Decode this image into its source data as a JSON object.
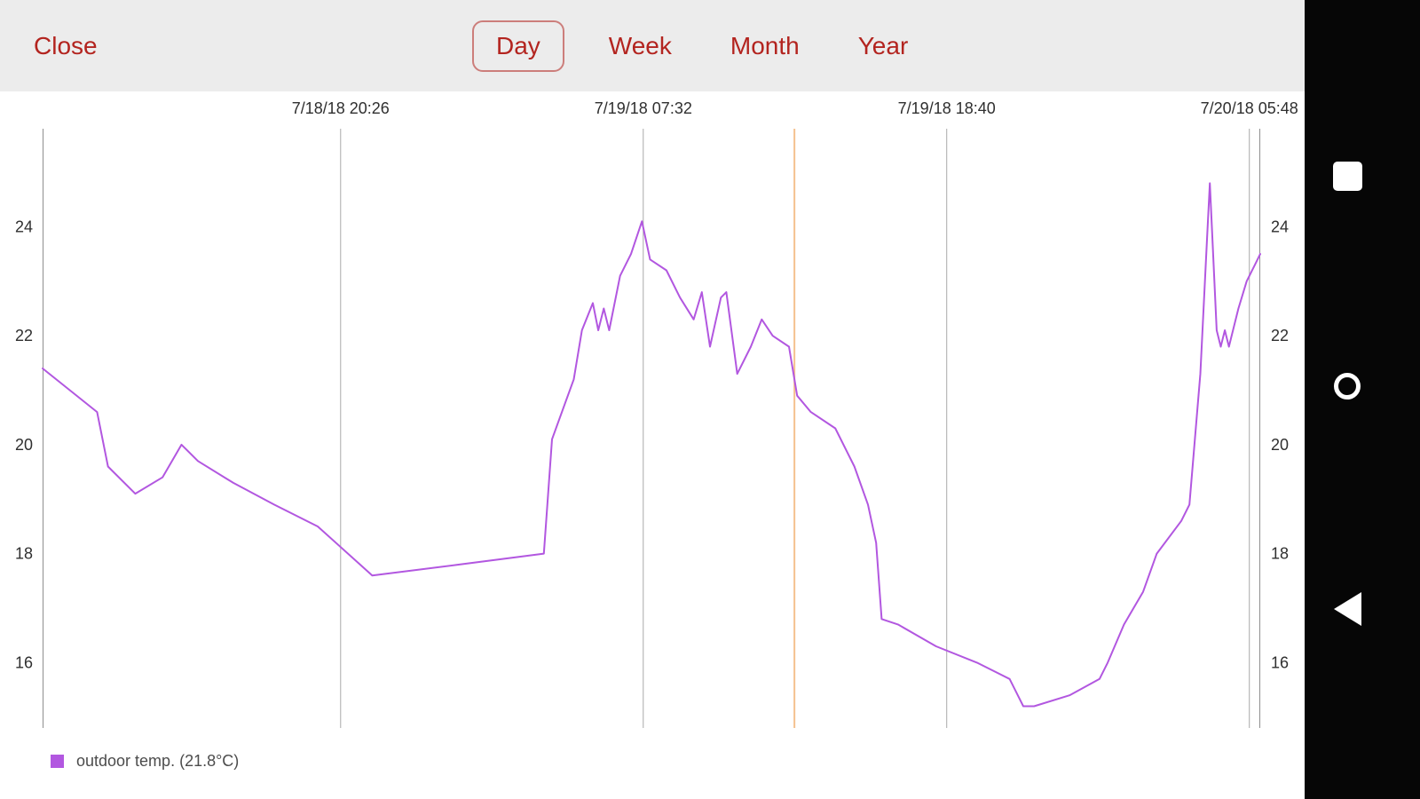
{
  "header": {
    "close_label": "Close",
    "tabs": [
      {
        "label": "Day",
        "selected": true
      },
      {
        "label": "Week",
        "selected": false
      },
      {
        "label": "Month",
        "selected": false
      },
      {
        "label": "Year",
        "selected": false
      }
    ]
  },
  "colors": {
    "accent_red": "#b3241f",
    "series_purple": "#b257e0",
    "now_line_orange": "#f5c18e",
    "grid_gray": "#aaaaaa",
    "axis_border_gray": "#8f8f8f",
    "header_gray": "#ececec",
    "nav_bar_black": "#060606"
  },
  "legend": {
    "label": "outdoor temp. (21.8°C)"
  },
  "android_nav": {
    "icons": [
      "recents-square-icon",
      "home-circle-icon",
      "back-triangle-icon"
    ]
  },
  "chart_data": {
    "type": "line",
    "x_unit": "hours (day view, 7/18/18 – 7/20/18)",
    "x_range": [
      0,
      44.7
    ],
    "y_unit": "°C",
    "y_range": [
      14.8,
      25.8
    ],
    "y_ticks": [
      16,
      18,
      20,
      22,
      24
    ],
    "x_ticks": [
      {
        "pos": 10.94,
        "label": "7/18/18 20:26"
      },
      {
        "pos": 22.05,
        "label": "7/19/18 07:32"
      },
      {
        "pos": 33.19,
        "label": "7/19/18 18:40"
      },
      {
        "pos": 44.3,
        "label": "7/20/18 05:48"
      }
    ],
    "now_line": {
      "pos": 27.6
    },
    "grid": "vertical-only",
    "legend_position": "bottom-left",
    "series": [
      {
        "name": "outdoor temp.",
        "current_value": "21.8°C",
        "points": [
          [
            0.0,
            21.4
          ],
          [
            2.0,
            20.6
          ],
          [
            2.4,
            19.6
          ],
          [
            3.4,
            19.1
          ],
          [
            4.4,
            19.4
          ],
          [
            5.1,
            20.0
          ],
          [
            5.7,
            19.7
          ],
          [
            7.0,
            19.3
          ],
          [
            8.5,
            18.9
          ],
          [
            10.1,
            18.5
          ],
          [
            12.1,
            17.6
          ],
          [
            15.3,
            17.8
          ],
          [
            18.4,
            18.0
          ],
          [
            18.7,
            20.1
          ],
          [
            19.5,
            21.2
          ],
          [
            19.8,
            22.1
          ],
          [
            20.2,
            22.6
          ],
          [
            20.4,
            22.1
          ],
          [
            20.6,
            22.5
          ],
          [
            20.8,
            22.1
          ],
          [
            21.2,
            23.1
          ],
          [
            21.6,
            23.5
          ],
          [
            22.0,
            24.1
          ],
          [
            22.3,
            23.4
          ],
          [
            22.9,
            23.2
          ],
          [
            23.4,
            22.7
          ],
          [
            23.9,
            22.3
          ],
          [
            24.2,
            22.8
          ],
          [
            24.5,
            21.8
          ],
          [
            24.9,
            22.7
          ],
          [
            25.1,
            22.8
          ],
          [
            25.5,
            21.3
          ],
          [
            26.0,
            21.8
          ],
          [
            26.4,
            22.3
          ],
          [
            26.8,
            22.0
          ],
          [
            27.4,
            21.8
          ],
          [
            27.7,
            20.9
          ],
          [
            28.2,
            20.6
          ],
          [
            29.1,
            20.3
          ],
          [
            29.8,
            19.6
          ],
          [
            30.3,
            18.9
          ],
          [
            30.6,
            18.2
          ],
          [
            30.8,
            16.8
          ],
          [
            31.4,
            16.7
          ],
          [
            32.8,
            16.3
          ],
          [
            34.3,
            16.0
          ],
          [
            35.5,
            15.7
          ],
          [
            36.0,
            15.2
          ],
          [
            36.4,
            15.2
          ],
          [
            37.7,
            15.4
          ],
          [
            38.8,
            15.7
          ],
          [
            39.1,
            16.0
          ],
          [
            39.7,
            16.7
          ],
          [
            40.4,
            17.3
          ],
          [
            40.9,
            18.0
          ],
          [
            41.8,
            18.6
          ],
          [
            42.1,
            18.9
          ],
          [
            42.5,
            21.3
          ],
          [
            42.75,
            23.8
          ],
          [
            42.85,
            24.8
          ],
          [
            43.1,
            22.1
          ],
          [
            43.25,
            21.8
          ],
          [
            43.4,
            22.1
          ],
          [
            43.55,
            21.8
          ],
          [
            43.9,
            22.5
          ],
          [
            44.2,
            23.0
          ],
          [
            44.5,
            23.3
          ],
          [
            44.7,
            23.5
          ]
        ]
      }
    ]
  }
}
